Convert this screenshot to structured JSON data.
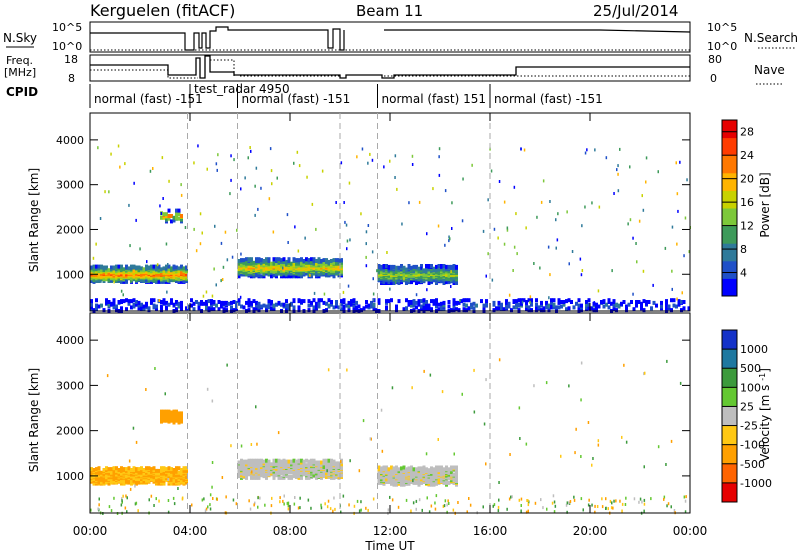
{
  "header": {
    "station": "Kerguelen (fitACF)",
    "beam": "Beam 11",
    "date": "25/Jul/2014"
  },
  "summary": {
    "nsky_label": "N.Sky",
    "nsearch_label": "N.Search",
    "freq_label_1": "Freq.",
    "freq_label_2": "[MHz]",
    "nave_label": "Nave",
    "cpid_label": "CPID",
    "nsky_ticks": [
      "10^5",
      "10^0"
    ],
    "nsearch_ticks": [
      "10^5",
      "10^0"
    ],
    "freq_ticks": [
      "18",
      "8"
    ],
    "nave_ticks": [
      "80",
      "0"
    ],
    "cpid_segments": [
      {
        "label": "normal (fast) -151",
        "start": 0.0,
        "end": 4.0
      },
      {
        "label": "test_radar 4950",
        "start": 4.0,
        "end": 5.9
      },
      {
        "label": "normal (fast) -151",
        "start": 5.9,
        "end": 11.5
      },
      {
        "label": "normal (fast) 151",
        "start": 11.5,
        "end": 16.0
      },
      {
        "label": "normal (fast) -151",
        "start": 16.0,
        "end": 24.0
      }
    ]
  },
  "chart_data": [
    {
      "type": "heatmap",
      "parameter": "Power",
      "ylabel": "Slant Range [km]",
      "xlim": [
        0,
        24
      ],
      "ylim": [
        180,
        4600
      ],
      "colorbar": {
        "label": "Power [dB]",
        "ticks": [
          "28",
          "24",
          "20",
          "16",
          "12",
          "8",
          "4"
        ],
        "range": [
          0,
          30
        ],
        "colors": [
          "#0000ff",
          "#1f50c8",
          "#2f7a9a",
          "#3d9a5a",
          "#7dc83a",
          "#c8d200",
          "#ffb400",
          "#ff7800",
          "#ff3c00",
          "#e60000"
        ]
      },
      "features": [
        {
          "t_start": 0.0,
          "t_end": 3.9,
          "range_center": 1050,
          "range_width": 350,
          "peak_dB": 26
        },
        {
          "t_start": 2.8,
          "t_end": 3.7,
          "range_center": 2350,
          "range_width": 250,
          "peak_dB": 24
        },
        {
          "t_start": 5.9,
          "t_end": 10.0,
          "range_center": 1200,
          "range_width": 400,
          "peak_dB": 22
        },
        {
          "t_start": 11.5,
          "t_end": 14.6,
          "range_center": 1050,
          "range_width": 400,
          "peak_dB": 18
        },
        {
          "t_start": 0.0,
          "t_end": 24.0,
          "range_center": 350,
          "range_width": 250,
          "peak_dB": 8
        }
      ]
    },
    {
      "type": "heatmap",
      "parameter": "Velocity",
      "xlabel": "Time UT",
      "ylabel": "Slant Range [km]",
      "xlim": [
        0,
        24
      ],
      "ylim": [
        180,
        4600
      ],
      "colorbar": {
        "label": "Velocity [m s^-1]",
        "ticks": [
          "1000",
          "500",
          "100",
          "25",
          "-25",
          "-100",
          "-500",
          "-1000"
        ],
        "colors": [
          "#1432c8",
          "#1e78a0",
          "#3c9a3c",
          "#64c832",
          "#bebebe",
          "#ffc814",
          "#ffa000",
          "#ff6400",
          "#e60000"
        ]
      },
      "features": [
        {
          "t_start": 0.0,
          "t_end": 3.9,
          "range_center": 1050,
          "range_width": 350,
          "velocity": -100
        },
        {
          "t_start": 2.8,
          "t_end": 3.7,
          "range_center": 2350,
          "range_width": 250,
          "velocity": -300
        },
        {
          "t_start": 5.9,
          "t_end": 10.0,
          "range_center": 1200,
          "range_width": 400,
          "velocity": 0
        },
        {
          "t_start": 11.5,
          "t_end": 14.6,
          "range_center": 1050,
          "range_width": 400,
          "velocity": 0
        }
      ]
    }
  ],
  "axes": {
    "y_ticks": [
      "1000",
      "2000",
      "3000",
      "4000"
    ],
    "y_values": [
      1000,
      2000,
      3000,
      4000
    ],
    "x_ticks": [
      "00:00",
      "04:00",
      "08:00",
      "12:00",
      "16:00",
      "20:00",
      "00:00"
    ],
    "x_values": [
      0,
      4,
      8,
      12,
      16,
      20,
      24
    ],
    "xlabel": "Time UT",
    "cpid_change_times": [
      3.9,
      5.9,
      10.0,
      11.5,
      16.0
    ]
  }
}
